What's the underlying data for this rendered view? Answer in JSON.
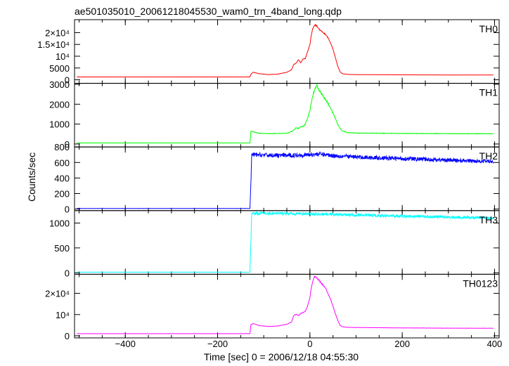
{
  "chart_data": {
    "type": "line",
    "title": "ae501035010_20061218045530_wam0_trn_4band_long.qdp",
    "xlabel": "Time [sec] 0 = 2006/12/18 04:55:30",
    "ylabel": "Counts/sec",
    "xlim": [
      -510,
      410
    ],
    "x_ticks": [
      {
        "value": -400,
        "label": "−400"
      },
      {
        "value": -200,
        "label": "−200"
      },
      {
        "value": 0,
        "label": "0"
      },
      {
        "value": 200,
        "label": "200"
      },
      {
        "value": 400,
        "label": "400"
      }
    ],
    "grid": false,
    "panels": [
      {
        "name": "TH0",
        "color": "#ff0000",
        "ylim": [
          -1500,
          25500
        ],
        "y_ticks": [
          {
            "value": 0,
            "label": "0"
          },
          {
            "value": 5000,
            "label": "5000"
          },
          {
            "value": 10000,
            "label": "10⁴"
          },
          {
            "value": 15000,
            "label": "1.5×10⁴"
          },
          {
            "value": 20000,
            "label": "2×10⁴"
          }
        ],
        "noise": 0.01,
        "x": [
          -505,
          -130,
          -128,
          -123,
          -110,
          -90,
          -70,
          -50,
          -40,
          -35,
          -30,
          -25,
          -20,
          -15,
          -10,
          -5,
          0,
          3,
          6,
          10,
          14,
          18,
          22,
          26,
          30,
          35,
          40,
          45,
          50,
          55,
          60,
          65,
          70,
          80,
          100,
          150,
          200,
          300,
          398
        ],
        "values": [
          1200,
          1200,
          2300,
          3200,
          2600,
          2200,
          2400,
          3200,
          4200,
          6500,
          7000,
          8500,
          7200,
          8800,
          9000,
          12000,
          15000,
          19000,
          21500,
          23300,
          23000,
          22000,
          21000,
          20500,
          19800,
          19000,
          17500,
          15500,
          13000,
          9500,
          6000,
          3500,
          2600,
          2300,
          2200,
          2150,
          2100,
          2050,
          2050
        ]
      },
      {
        "name": "TH1",
        "color": "#00ff00",
        "ylim": [
          -150,
          3050
        ],
        "y_ticks": [
          {
            "value": 0,
            "label": "0"
          },
          {
            "value": 1000,
            "label": "1000"
          },
          {
            "value": 2000,
            "label": "2000"
          },
          {
            "value": 3000,
            "label": "3000"
          }
        ],
        "noise": 0.02,
        "x": [
          -505,
          -130,
          -128,
          -123,
          -110,
          -80,
          -50,
          -40,
          -35,
          -30,
          -25,
          -20,
          -15,
          -10,
          -5,
          0,
          4,
          8,
          12,
          15,
          18,
          22,
          26,
          30,
          35,
          40,
          45,
          50,
          55,
          60,
          65,
          70,
          80,
          100,
          150,
          200,
          300,
          398
        ],
        "values": [
          50,
          50,
          650,
          620,
          530,
          520,
          540,
          620,
          700,
          820,
          780,
          860,
          880,
          1000,
          1300,
          1700,
          2200,
          2600,
          2800,
          2950,
          2750,
          2650,
          2500,
          2350,
          2200,
          2000,
          1800,
          1550,
          1300,
          1000,
          800,
          660,
          580,
          550,
          540,
          530,
          520,
          515
        ]
      },
      {
        "name": "TH2",
        "color": "#0000ff",
        "ylim": [
          -20,
          800
        ],
        "y_ticks": [
          {
            "value": 0,
            "label": "0"
          },
          {
            "value": 200,
            "label": "200"
          },
          {
            "value": 400,
            "label": "400"
          },
          {
            "value": 600,
            "label": "600"
          },
          {
            "value": 800,
            "label": "800"
          }
        ],
        "noise": 0.04,
        "x": [
          -505,
          -130,
          -128,
          -126,
          -100,
          -50,
          0,
          20,
          50,
          100,
          150,
          200,
          250,
          300,
          350,
          398
        ],
        "values": [
          8,
          8,
          320,
          700,
          695,
          690,
          700,
          710,
          690,
          670,
          660,
          650,
          640,
          630,
          620,
          615
        ]
      },
      {
        "name": "TH3",
        "color": "#00ffff",
        "ylim": [
          -30,
          1250
        ],
        "y_ticks": [
          {
            "value": 0,
            "label": "0"
          },
          {
            "value": 500,
            "label": "500"
          },
          {
            "value": 1000,
            "label": "1000"
          }
        ],
        "noise": 0.025,
        "x": [
          -505,
          -130,
          -128,
          -126,
          -100,
          -50,
          0,
          50,
          100,
          150,
          200,
          250,
          300,
          350,
          398
        ],
        "values": [
          12,
          12,
          600,
          1200,
          1195,
          1190,
          1185,
          1175,
          1160,
          1150,
          1140,
          1130,
          1120,
          1110,
          1100
        ]
      },
      {
        "name": "TH0123",
        "color": "#ff00ff",
        "ylim": [
          -1000,
          29000
        ],
        "y_ticks": [
          {
            "value": 0,
            "label": "0"
          },
          {
            "value": 10000,
            "label": "10⁴"
          },
          {
            "value": 20000,
            "label": "2×10⁴"
          }
        ],
        "noise": 0.01,
        "x": [
          -505,
          -130,
          -128,
          -123,
          -110,
          -90,
          -70,
          -50,
          -40,
          -35,
          -30,
          -25,
          -20,
          -15,
          -10,
          -5,
          0,
          3,
          6,
          10,
          14,
          18,
          22,
          26,
          30,
          35,
          40,
          45,
          50,
          55,
          60,
          65,
          70,
          80,
          100,
          150,
          200,
          300,
          398
        ],
        "values": [
          1000,
          1000,
          5200,
          5800,
          4800,
          4400,
          4600,
          5400,
          6500,
          9500,
          10200,
          9500,
          10500,
          11000,
          11500,
          14000,
          18000,
          22500,
          25500,
          28000,
          27500,
          26500,
          25500,
          24500,
          23500,
          22000,
          19500,
          17000,
          14000,
          10500,
          7500,
          5000,
          4300,
          4000,
          3900,
          3800,
          3700,
          3600,
          3550
        ]
      }
    ]
  }
}
